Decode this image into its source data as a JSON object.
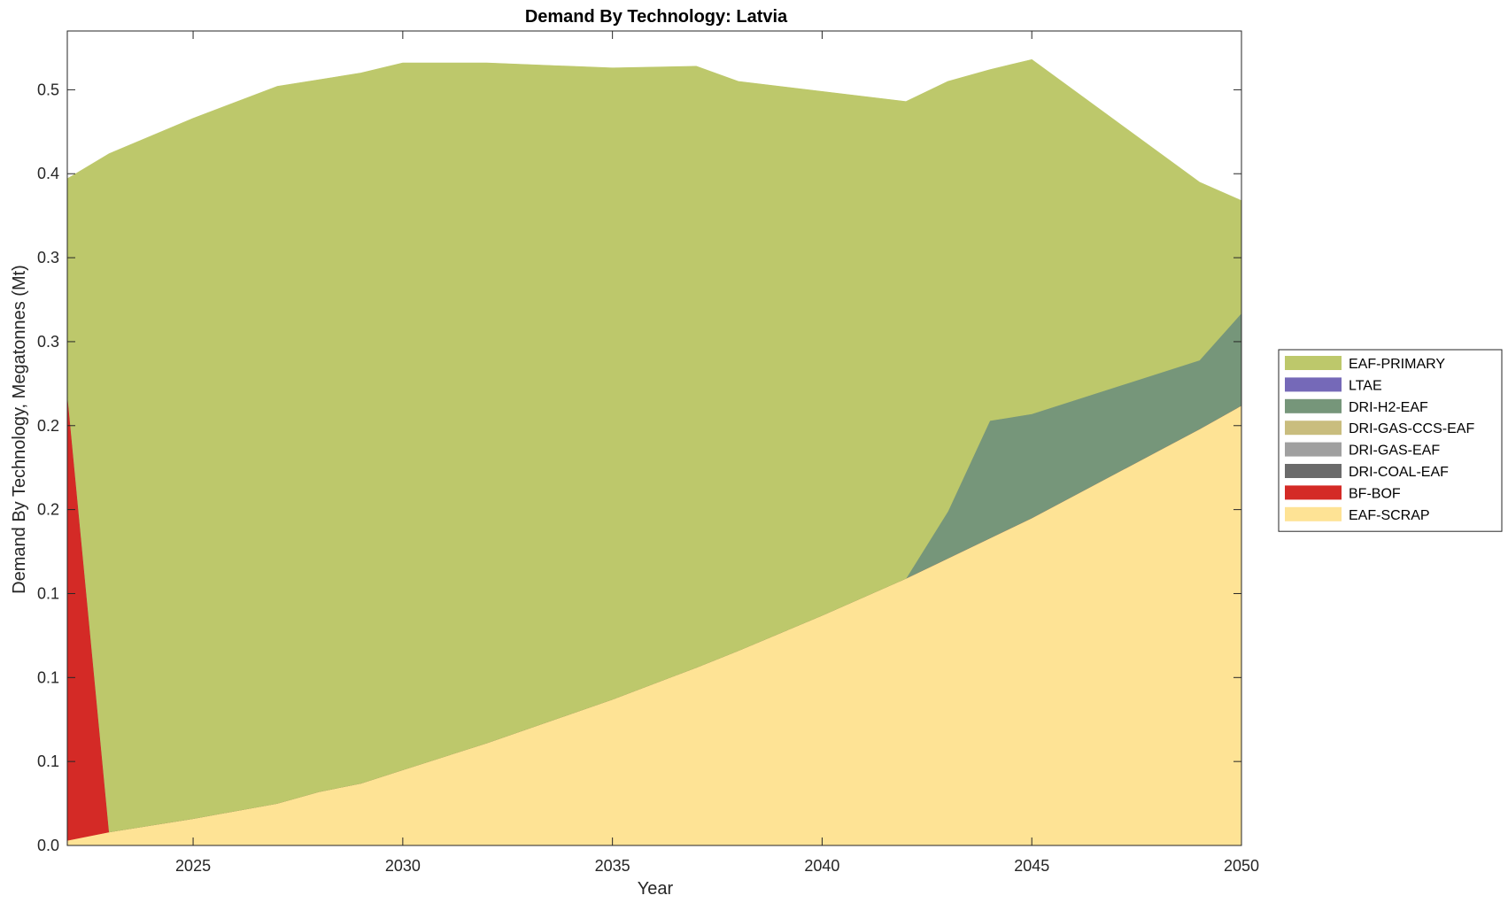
{
  "chart_data": {
    "type": "area",
    "title": "Demand By Technology: Latvia",
    "xlabel": "Year",
    "ylabel": "Demand By Technology, Megatonnes (Mt)",
    "xlim": [
      2022,
      2050
    ],
    "ylim": [
      0,
      0.485
    ],
    "x_ticks": [
      2025,
      2030,
      2035,
      2040,
      2045,
      2050
    ],
    "x_tick_labels": [
      "2025",
      "2030",
      "2035",
      "2040",
      "2045",
      "2050"
    ],
    "y_ticks": [
      0,
      0.05,
      0.1,
      0.15,
      0.2,
      0.25,
      0.3,
      0.35,
      0.4,
      0.45
    ],
    "y_tick_labels": [
      "0.0",
      "0.1",
      "0.1",
      "0.1",
      "0.2",
      "0.2",
      "0.3",
      "0.3",
      "0.4",
      "0.5"
    ],
    "legend_position": "right",
    "x": [
      2022,
      2023,
      2025,
      2027,
      2028,
      2029,
      2030,
      2031,
      2032,
      2035,
      2037,
      2038,
      2040,
      2042,
      2043,
      2044,
      2045,
      2049,
      2050
    ],
    "series": [
      {
        "name": "EAF-SCRAP",
        "color": "#FEE395",
        "values": [
          0.003,
          0.008,
          0.016,
          0.025,
          0.032,
          0.037,
          0.045,
          0.053,
          0.061,
          0.087,
          0.106,
          0.116,
          0.137,
          0.159,
          0.171,
          0.183,
          0.195,
          0.248,
          0.262
        ]
      },
      {
        "name": "BF-BOF",
        "color": "#D42A26",
        "values": [
          0.267,
          0,
          0,
          0,
          0,
          0,
          0,
          0,
          0,
          0,
          0,
          0,
          0,
          0,
          0,
          0,
          0,
          0,
          0
        ]
      },
      {
        "name": "DRI-COAL-EAF",
        "color": "#6B6B6B",
        "values": [
          0,
          0,
          0,
          0,
          0,
          0,
          0,
          0,
          0,
          0,
          0,
          0,
          0,
          0,
          0,
          0,
          0,
          0,
          0
        ]
      },
      {
        "name": "DRI-GAS-EAF",
        "color": "#A0A0A0",
        "values": [
          0,
          0,
          0,
          0,
          0,
          0,
          0,
          0,
          0,
          0,
          0,
          0,
          0,
          0,
          0,
          0,
          0,
          0,
          0
        ]
      },
      {
        "name": "DRI-GAS-CCS-EAF",
        "color": "#C9BD7E",
        "values": [
          0,
          0,
          0,
          0,
          0,
          0,
          0,
          0,
          0,
          0,
          0,
          0,
          0,
          0,
          0,
          0,
          0,
          0,
          0
        ]
      },
      {
        "name": "DRI-H2-EAF",
        "color": "#76967A",
        "values": [
          0,
          0,
          0,
          0,
          0,
          0,
          0,
          0,
          0,
          0,
          0,
          0,
          0,
          0,
          0.028,
          0.07,
          0.062,
          0.041,
          0.055
        ]
      },
      {
        "name": "LTAE",
        "color": "#7569B8",
        "values": [
          0,
          0,
          0,
          0,
          0,
          0,
          0,
          0,
          0,
          0,
          0,
          0,
          0,
          0,
          0,
          0,
          0,
          0,
          0
        ]
      },
      {
        "name": "EAF-PRIMARY",
        "color": "#BDC86B",
        "values": [
          0.127,
          0.404,
          0.417,
          0.427,
          0.424,
          0.423,
          0.421,
          0.413,
          0.405,
          0.376,
          0.358,
          0.339,
          0.312,
          0.284,
          0.256,
          0.209,
          0.211,
          0.106,
          0.067
        ]
      }
    ],
    "legend_order": [
      "EAF-PRIMARY",
      "LTAE",
      "DRI-H2-EAF",
      "DRI-GAS-CCS-EAF",
      "DRI-GAS-EAF",
      "DRI-COAL-EAF",
      "BF-BOF",
      "EAF-SCRAP"
    ]
  }
}
